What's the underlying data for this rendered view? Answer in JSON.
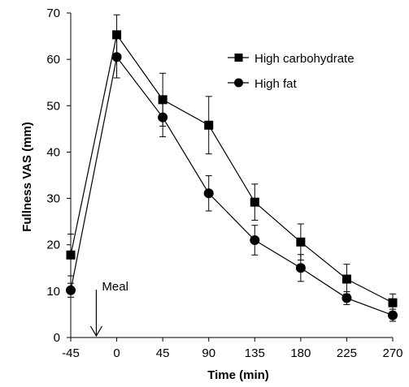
{
  "chart_data": {
    "type": "line",
    "title": "",
    "xlabel": "Time (min)",
    "ylabel": "Fullness VAS (mm)",
    "x": [
      -45,
      0,
      45,
      90,
      135,
      180,
      225,
      270
    ],
    "x_ticks": [
      "-45",
      "0",
      "45",
      "90",
      "135",
      "180",
      "225",
      "270"
    ],
    "y_ticks": [
      "0",
      "10",
      "20",
      "30",
      "40",
      "50",
      "60",
      "70"
    ],
    "xlim": [
      -45,
      270
    ],
    "ylim": [
      0,
      70
    ],
    "grid": false,
    "legend_position": "top-right",
    "series": [
      {
        "name": "High carbohydrate",
        "marker": "square",
        "values": [
          17.8,
          65.3,
          51.3,
          45.8,
          29.2,
          20.6,
          12.6,
          7.5
        ],
        "error": [
          4.5,
          4.3,
          5.7,
          6.2,
          3.9,
          3.9,
          3.2,
          1.9
        ]
      },
      {
        "name": "High fat",
        "marker": "circle",
        "values": [
          10.2,
          60.5,
          47.5,
          31.1,
          21.0,
          15.0,
          8.5,
          4.8
        ],
        "error": [
          1.5,
          4.5,
          4.2,
          3.8,
          3.2,
          2.9,
          1.4,
          1.3
        ]
      }
    ],
    "annotations": [
      {
        "text": "Meal",
        "x": -20,
        "arrow": "down"
      }
    ]
  },
  "colors": {
    "line": "#000000",
    "marker": "#000000",
    "background": "#ffffff"
  }
}
